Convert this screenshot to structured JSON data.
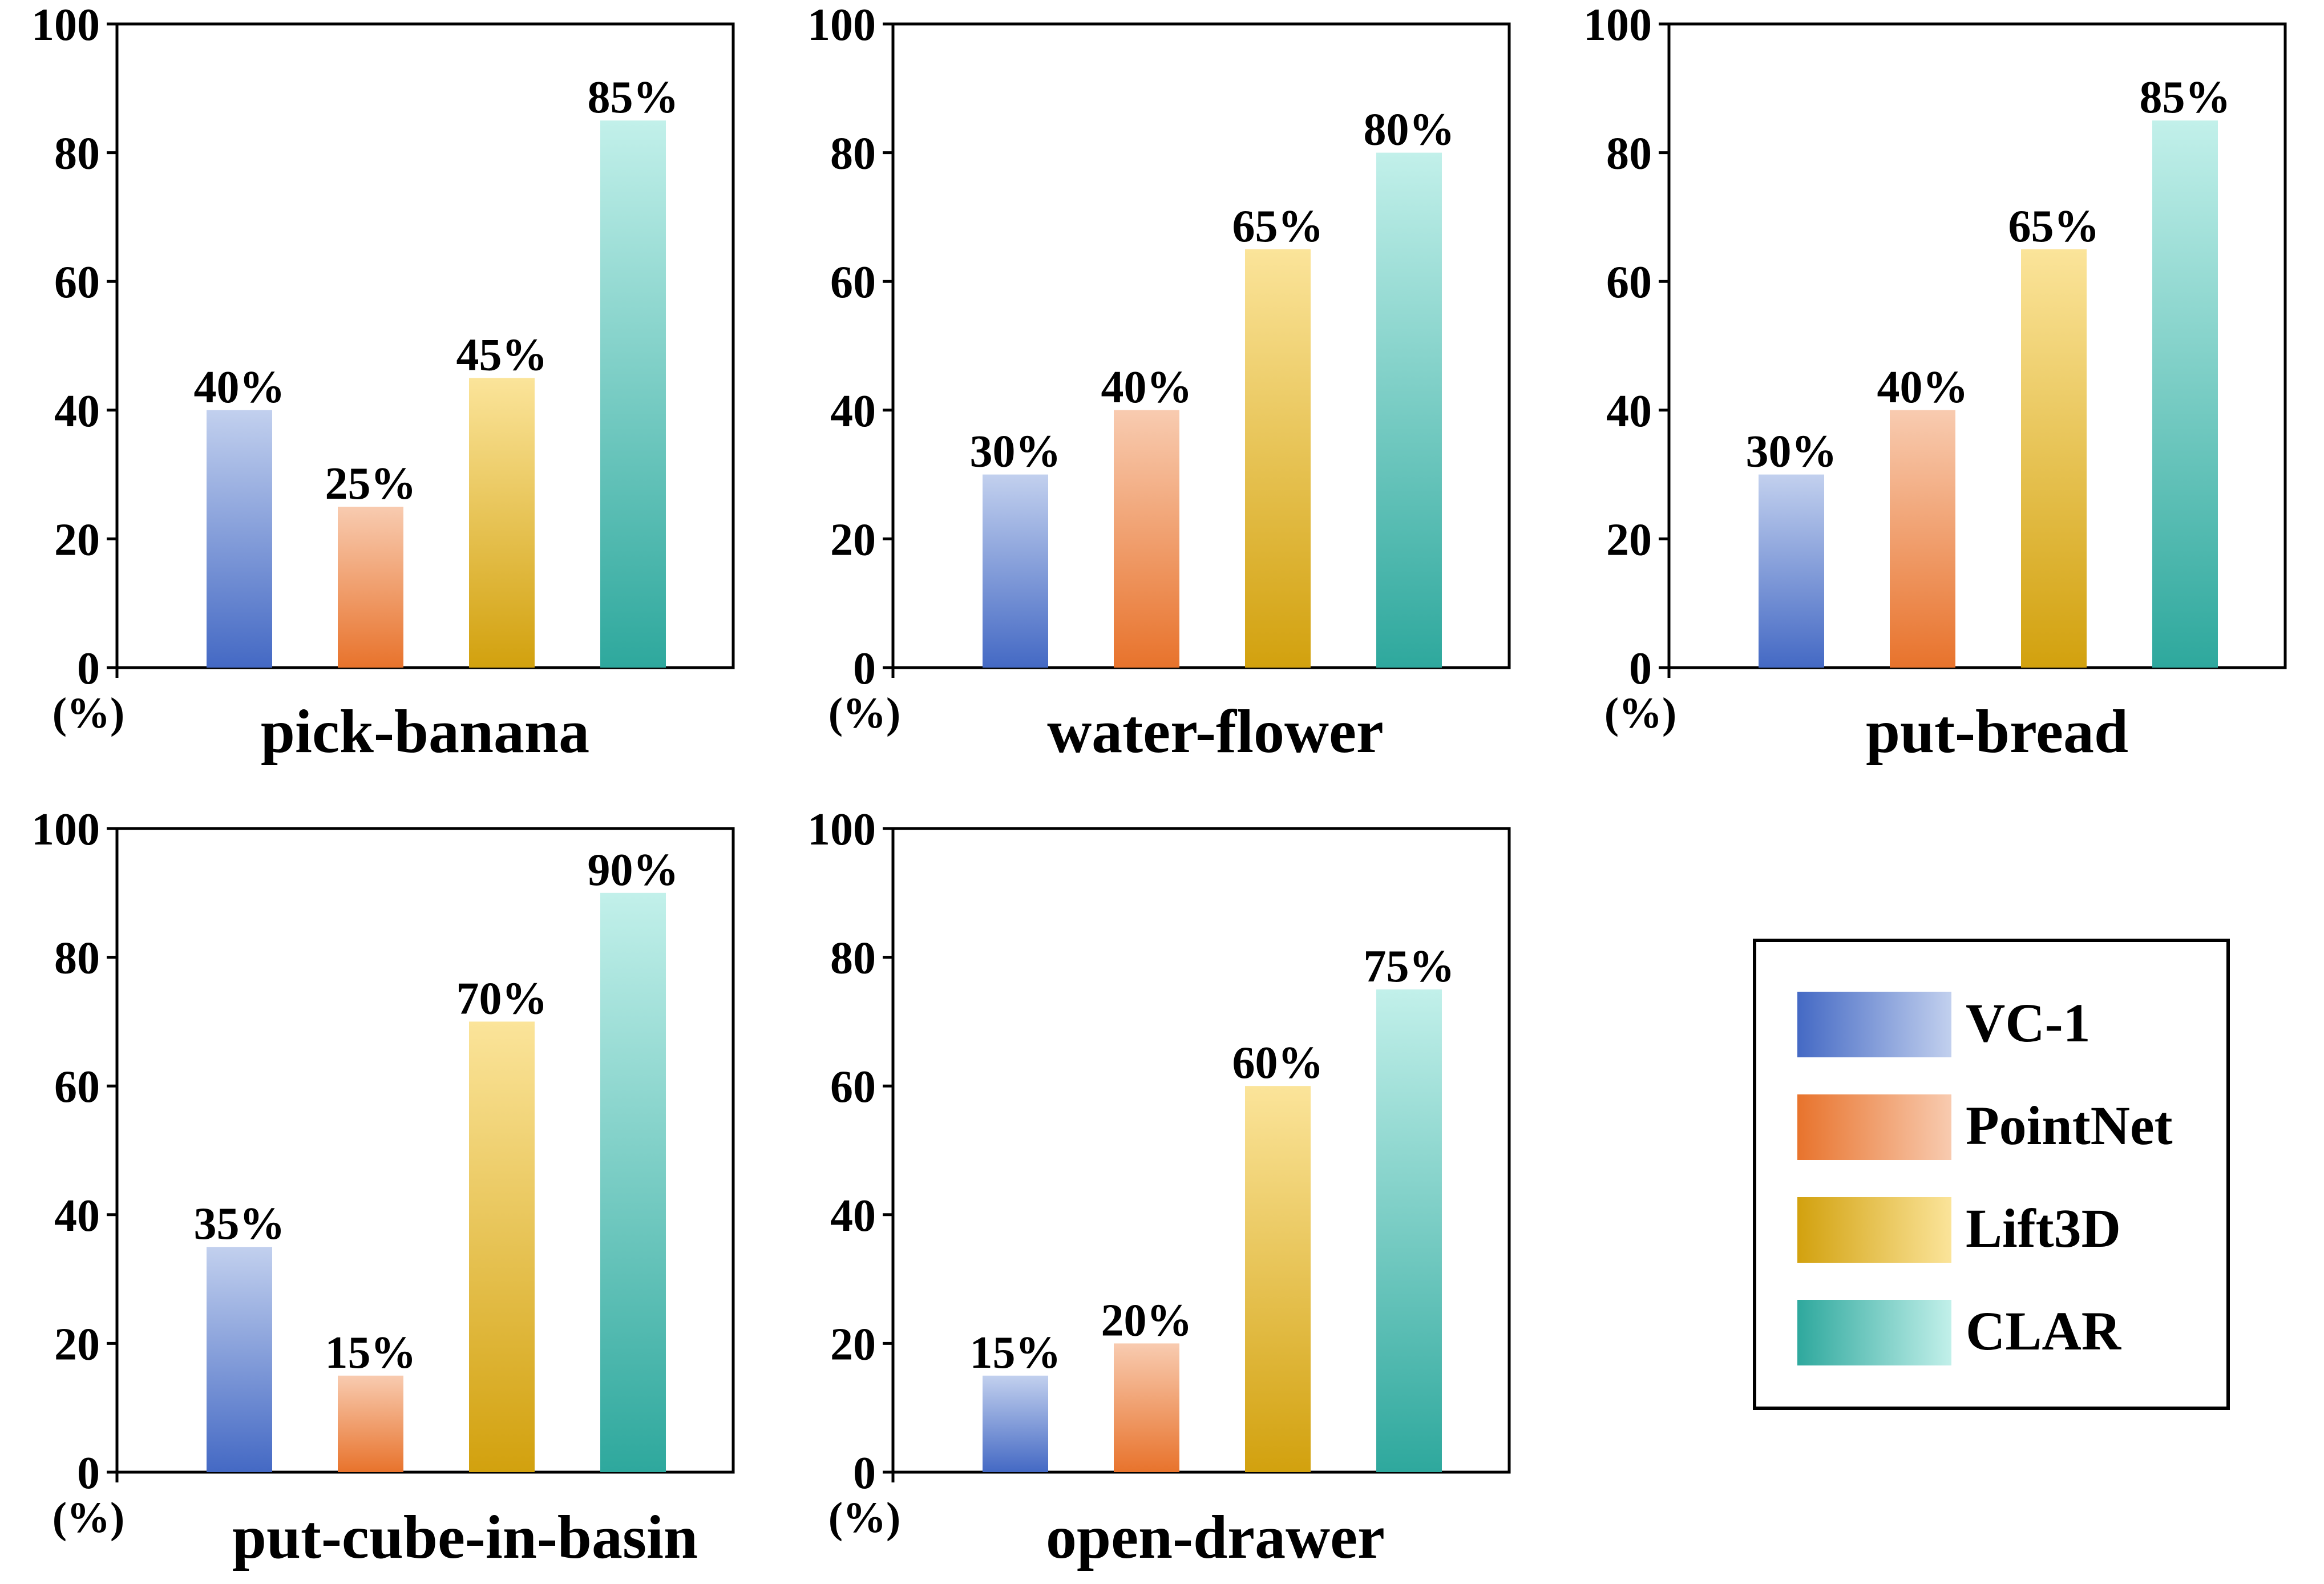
{
  "legend": {
    "position": "bottom-right",
    "items": [
      {
        "name": "VC-1",
        "color_dark": "#4469C4",
        "color_light": "#C2D0EE"
      },
      {
        "name": "PointNet",
        "color_dark": "#E8732C",
        "color_light": "#F8CBB0"
      },
      {
        "name": "Lift3D",
        "color_dark": "#D2A10E",
        "color_light": "#FBE49A"
      },
      {
        "name": "CLAR",
        "color_dark": "#2EA89D",
        "color_light": "#C2F0EA"
      }
    ]
  },
  "chart_data": [
    {
      "type": "bar",
      "title": "pick-banana",
      "unit_label": "(%)",
      "ylim": [
        0,
        100
      ],
      "yticks": [
        "0",
        "20",
        "40",
        "60",
        "80",
        "100"
      ],
      "categories": [
        "VC-1",
        "PointNet",
        "Lift3D",
        "CLAR"
      ],
      "values": [
        40,
        25,
        45,
        85
      ],
      "data_labels": [
        "40%",
        "25%",
        "45%",
        "85%"
      ],
      "grid": false
    },
    {
      "type": "bar",
      "title": "water-flower",
      "unit_label": "(%)",
      "ylim": [
        0,
        100
      ],
      "yticks": [
        "0",
        "20",
        "40",
        "60",
        "80",
        "100"
      ],
      "categories": [
        "VC-1",
        "PointNet",
        "Lift3D",
        "CLAR"
      ],
      "values": [
        30,
        40,
        65,
        80
      ],
      "data_labels": [
        "30%",
        "40%",
        "65%",
        "80%"
      ],
      "grid": false
    },
    {
      "type": "bar",
      "title": "put-bread",
      "unit_label": "(%)",
      "ylim": [
        0,
        100
      ],
      "yticks": [
        "0",
        "20",
        "40",
        "60",
        "80",
        "100"
      ],
      "categories": [
        "VC-1",
        "PointNet",
        "Lift3D",
        "CLAR"
      ],
      "values": [
        30,
        40,
        65,
        85
      ],
      "data_labels": [
        "30%",
        "40%",
        "65%",
        "85%"
      ],
      "grid": false
    },
    {
      "type": "bar",
      "title": "put-cube-in-basin",
      "unit_label": "(%)",
      "ylim": [
        0,
        100
      ],
      "yticks": [
        "0",
        "20",
        "40",
        "60",
        "80",
        "100"
      ],
      "categories": [
        "VC-1",
        "PointNet",
        "Lift3D",
        "CLAR"
      ],
      "values": [
        35,
        15,
        70,
        90
      ],
      "data_labels": [
        "35%",
        "15%",
        "70%",
        "90%"
      ],
      "grid": false
    },
    {
      "type": "bar",
      "title": "open-drawer",
      "unit_label": "(%)",
      "ylim": [
        0,
        100
      ],
      "yticks": [
        "0",
        "20",
        "40",
        "60",
        "80",
        "100"
      ],
      "categories": [
        "VC-1",
        "PointNet",
        "Lift3D",
        "CLAR"
      ],
      "values": [
        15,
        20,
        60,
        75
      ],
      "data_labels": [
        "15%",
        "20%",
        "60%",
        "75%"
      ],
      "grid": false
    }
  ]
}
